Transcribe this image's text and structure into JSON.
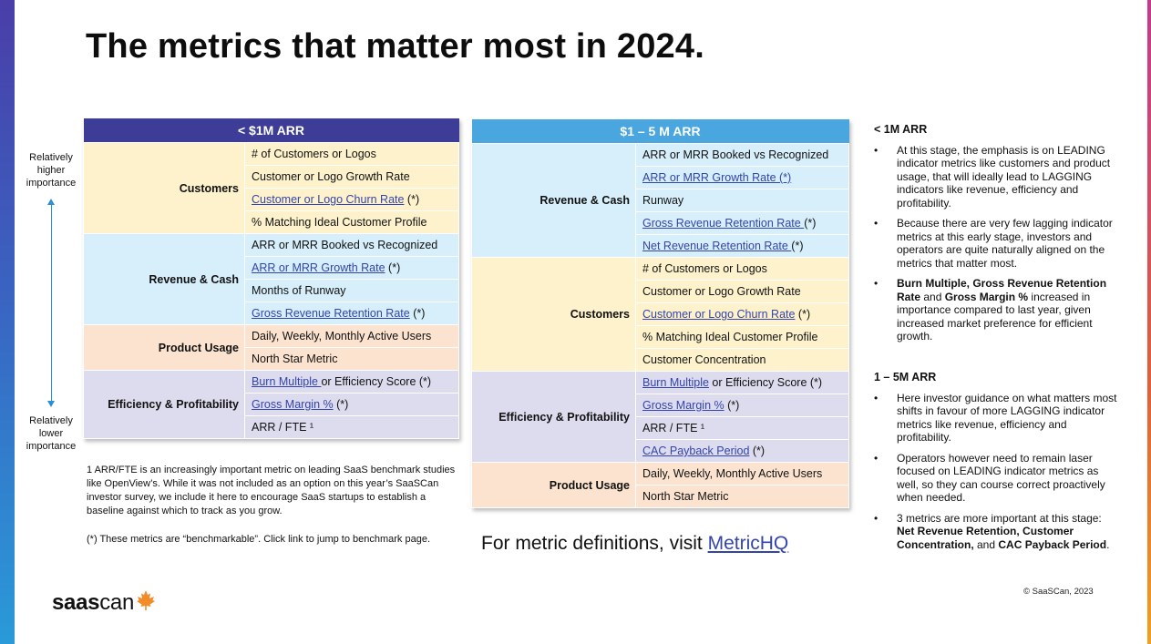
{
  "title": "The metrics that matter most in 2024.",
  "axis": {
    "top": "Relatively higher importance",
    "bottom": "Relatively lower importance"
  },
  "table1": {
    "header": "< $1M ARR",
    "groups": [
      {
        "name": "Customers",
        "color": "#fdf2cc",
        "rows": [
          {
            "text": "# of Customers or Logos",
            "link": "",
            "suffix": ""
          },
          {
            "text": "Customer or Logo Growth Rate",
            "link": "",
            "suffix": ""
          },
          {
            "text": "",
            "link": "Customer or Logo Churn Rate",
            "suffix": " (*)"
          },
          {
            "text": "% Matching Ideal Customer Profile",
            "link": "",
            "suffix": ""
          }
        ]
      },
      {
        "name": "Revenue & Cash",
        "color": "#d7effa",
        "rows": [
          {
            "text": "ARR or MRR Booked vs Recognized",
            "link": "",
            "suffix": ""
          },
          {
            "text": "",
            "link": "ARR or MRR Growth Rate",
            "suffix": " (*)"
          },
          {
            "text": "Months of Runway",
            "link": "",
            "suffix": ""
          },
          {
            "text": "",
            "link": "Gross Revenue Retention Rate",
            "suffix": " (*)"
          }
        ]
      },
      {
        "name": "Product Usage",
        "color": "#fbe3cf",
        "rows": [
          {
            "text": "Daily, Weekly, Monthly Active Users",
            "link": "",
            "suffix": ""
          },
          {
            "text": "North Star Metric",
            "link": "",
            "suffix": ""
          }
        ]
      },
      {
        "name": "Efficiency & Profitability",
        "color": "#dddcef",
        "rows": [
          {
            "text": "",
            "link": "Burn Multiple ",
            "suffix": "or Efficiency Score (*)"
          },
          {
            "text": "",
            "link": "Gross Margin %",
            "suffix": " (*)"
          },
          {
            "text": "ARR / FTE ¹",
            "link": "",
            "suffix": ""
          }
        ]
      }
    ]
  },
  "table2": {
    "header": "$1 – 5 M ARR",
    "groups": [
      {
        "name": "Revenue & Cash",
        "color": "#d7effa",
        "rows": [
          {
            "text": "ARR or MRR Booked vs Recognized",
            "link": "",
            "suffix": ""
          },
          {
            "text": "",
            "link": "ARR or MRR Growth Rate (*)",
            "suffix": ""
          },
          {
            "text": "Runway",
            "link": "",
            "suffix": ""
          },
          {
            "text": "",
            "link": "Gross Revenue Retention Rate ",
            "suffix": "(*)"
          },
          {
            "text": "",
            "link": "Net Revenue Retention Rate ",
            "suffix": "(*)"
          }
        ]
      },
      {
        "name": "Customers",
        "color": "#fdf2cc",
        "rows": [
          {
            "text": "# of Customers or Logos",
            "link": "",
            "suffix": ""
          },
          {
            "text": "Customer or Logo Growth Rate",
            "link": "",
            "suffix": ""
          },
          {
            "text": "",
            "link": "Customer or Logo Churn Rate",
            "suffix": " (*)"
          },
          {
            "text": "% Matching Ideal Customer Profile",
            "link": "",
            "suffix": ""
          },
          {
            "text": "Customer Concentration",
            "link": "",
            "suffix": ""
          }
        ]
      },
      {
        "name": "Efficiency & Profitability",
        "color": "#dddcef",
        "rows": [
          {
            "text": "",
            "link": "Burn Multiple",
            "suffix": " or Efficiency Score (*)"
          },
          {
            "text": "",
            "link": "Gross Margin %",
            "suffix": " (*)"
          },
          {
            "text": "ARR / FTE ¹",
            "link": "",
            "suffix": ""
          },
          {
            "text": "",
            "link": "CAC Payback Period",
            "suffix": " (*)"
          }
        ]
      },
      {
        "name": "Product Usage",
        "color": "#fbe3cf",
        "rows": [
          {
            "text": "Daily, Weekly, Monthly Active Users",
            "link": "",
            "suffix": ""
          },
          {
            "text": "North Star Metric",
            "link": "",
            "suffix": ""
          }
        ]
      }
    ]
  },
  "footnote": "1   ARR/FTE is an increasingly important metric on leading SaaS benchmark studies like OpenView’s. While it was not included as an option on this year’s SaaSCan investor survey, we include it here to encourage SaaS startups to establish a baseline against which to track as you grow.",
  "benchmark_note": "(*) These metrics are “benchmarkable”.  Click link to jump to benchmark page.",
  "definitions": {
    "text": "For metric definitions, visit ",
    "link": "MetricHQ"
  },
  "notes": [
    {
      "heading": "< 1M ARR",
      "bullets": [
        [
          {
            "t": "At this stage, the emphasis is on LEADING indicator metrics like customers and product usage, that will ideally lead to LAGGING indicators like revenue, efficiency and profitability.",
            "b": false
          }
        ],
        [
          {
            "t": "Because there are very few lagging indicator metrics at this early stage, investors and operators are quite naturally aligned on the metrics that matter most.",
            "b": false
          }
        ],
        [
          {
            "t": "Burn Multiple, Gross Revenue Retention Rate",
            "b": true
          },
          {
            "t": " and ",
            "b": false
          },
          {
            "t": "Gross Margin %",
            "b": true
          },
          {
            "t": " increased in importance compared to last year, given increased market preference for efficient growth.",
            "b": false
          }
        ]
      ]
    },
    {
      "heading": "1 – 5M ARR",
      "bullets": [
        [
          {
            "t": "Here investor guidance on what matters most shifts in favour of more LAGGING indicator metrics like revenue, efficiency and profitability.",
            "b": false
          }
        ],
        [
          {
            "t": "Operators however need to remain laser focused on LEADING indicator metrics as well, so they can course correct proactively when needed.",
            "b": false
          }
        ],
        [
          {
            "t": "3 metrics are more important at this stage: ",
            "b": false
          },
          {
            "t": "Net Revenue Retention, Customer Concentration,",
            "b": true
          },
          {
            "t": " and ",
            "b": false
          },
          {
            "t": "CAC Payback Period",
            "b": true
          },
          {
            "t": ".",
            "b": false
          }
        ]
      ]
    }
  ],
  "copyright": "© SaaSCan, 2023",
  "logo": {
    "bold": "saas",
    "light": "can",
    "leaf_color": "#f28c28"
  },
  "colors": {
    "table1_header": "#3d3d97",
    "table2_header": "#4aa6df",
    "link": "#3344aa"
  }
}
